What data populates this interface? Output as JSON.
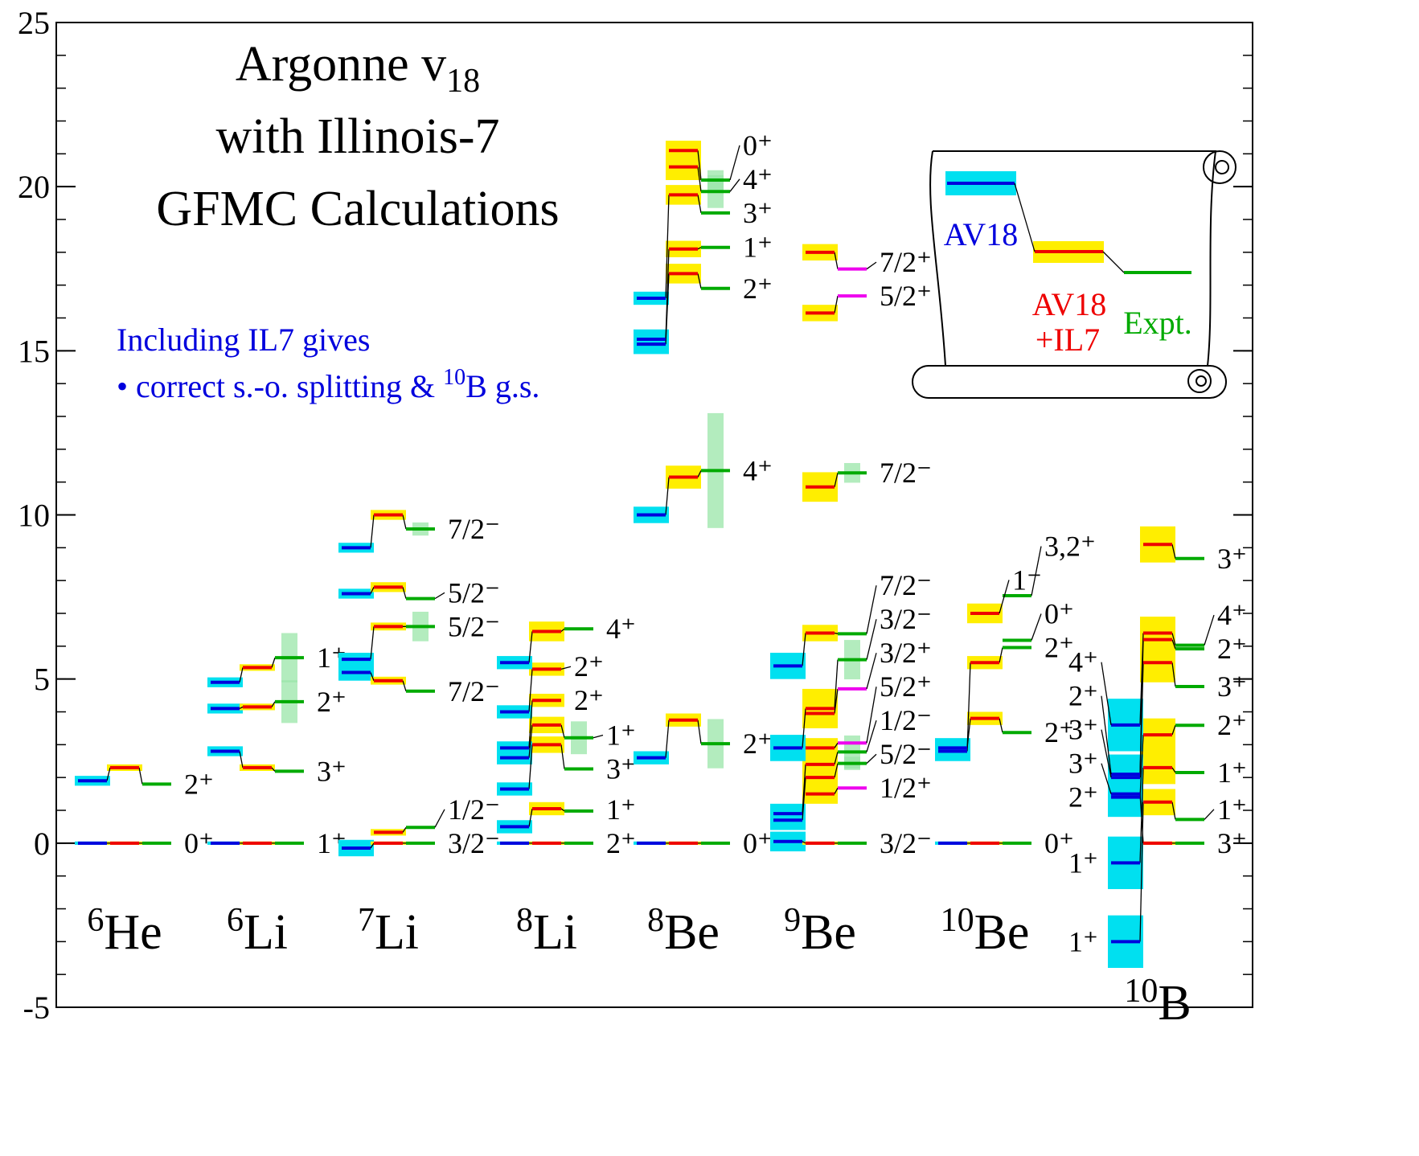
{
  "chart_data": {
    "type": "level-scheme",
    "title": "Argonne v",
    "title_subscript": "18",
    "subtitle_lines": [
      "with Illinois-7",
      "GFMC Calculations"
    ],
    "note_lines": [
      [
        {
          "text": "Including IL7 gives"
        }
      ],
      [
        {
          "text": "• correct s.-o. splitting & "
        },
        {
          "text": "10",
          "sup": true
        },
        {
          "text": "B g.s."
        }
      ]
    ],
    "legend": {
      "av18": "AV18",
      "il7": [
        "AV18",
        "+IL7"
      ],
      "expt": "Expt."
    },
    "colors": {
      "av18": "#0000dd",
      "av18_error": "#00e0f0",
      "il7": "#ee0000",
      "il7_error": "#ffee00",
      "expt": "#00aa00",
      "expt_error": "#99e6a8"
    },
    "ylim": [
      -5,
      25
    ],
    "yticks": [
      -5,
      0,
      5,
      10,
      15,
      20,
      25
    ],
    "yminor": 1,
    "nuclei": [
      {
        "mass": "6",
        "element": "He",
        "states": [
          {
            "label": "0⁺",
            "av18": {
              "value": 0,
              "error": 0.05
            },
            "il7": {
              "value": 0,
              "error": 0.05
            },
            "expt": {
              "value": 0
            }
          },
          {
            "label": "2⁺",
            "av18": {
              "value": 1.9,
              "error": 0.15
            },
            "il7": {
              "value": 2.3,
              "error": 0.1
            },
            "expt": {
              "value": 1.8
            }
          }
        ]
      },
      {
        "mass": "6",
        "element": "Li",
        "states": [
          {
            "label": "1⁺",
            "av18": {
              "value": 0,
              "error": 0.05
            },
            "il7": {
              "value": 0,
              "error": 0.05
            },
            "expt": {
              "value": 0
            }
          },
          {
            "label": "3⁺",
            "av18": {
              "value": 2.8,
              "error": 0.15
            },
            "il7": {
              "value": 2.3,
              "error": 0.1
            },
            "expt": {
              "value": 2.19
            }
          },
          {
            "label": "2⁺",
            "av18": {
              "value": 4.1,
              "error": 0.15
            },
            "il7": {
              "value": 4.15,
              "error": 0.1
            },
            "expt": {
              "value": 4.31,
              "error": 0.65
            }
          },
          {
            "label": "1⁺",
            "av18": {
              "value": 4.9,
              "error": 0.15
            },
            "il7": {
              "value": 5.35,
              "error": 0.1
            },
            "expt": {
              "value": 5.65,
              "error": 0.75
            }
          }
        ]
      },
      {
        "mass": "7",
        "element": "Li",
        "states": [
          {
            "label": "3/2⁻",
            "av18": {
              "value": -0.15,
              "error": 0.25
            },
            "il7": {
              "value": 0,
              "error": 0.05
            },
            "expt": {
              "value": 0
            }
          },
          {
            "label": "1/2⁻",
            "il7": {
              "value": 0.33,
              "error": 0.1
            },
            "expt": {
              "value": 0.48
            }
          },
          {
            "label": "7/2⁻",
            "av18": {
              "value": 5.2,
              "error": 0.25
            },
            "il7": {
              "value": 4.95,
              "error": 0.12
            },
            "expt": {
              "value": 4.63
            }
          },
          {
            "label": "5/2⁻",
            "av18": {
              "value": 5.6,
              "error": 0.2
            },
            "il7": {
              "value": 6.6,
              "error": 0.12
            },
            "expt": {
              "value": 6.6,
              "error": 0.45
            }
          },
          {
            "label": "5/2⁻",
            "av18": {
              "value": 7.6,
              "error": 0.15
            },
            "il7": {
              "value": 7.8,
              "error": 0.15
            },
            "expt": {
              "value": 7.45
            }
          },
          {
            "label": "7/2⁻",
            "av18": {
              "value": 9.0,
              "error": 0.15
            },
            "il7": {
              "value": 10.0,
              "error": 0.15
            },
            "expt": {
              "value": 9.57,
              "error": 0.2
            }
          }
        ]
      },
      {
        "mass": "8",
        "element": "Li",
        "states": [
          {
            "label": "2⁺",
            "av18": {
              "value": 0,
              "error": 0.05
            },
            "il7": {
              "value": 0,
              "error": 0.05
            },
            "expt": {
              "value": 0
            }
          },
          {
            "label": "1⁺",
            "av18": {
              "value": 0.5,
              "error": 0.2
            },
            "il7": {
              "value": 1.05,
              "error": 0.2
            },
            "expt": {
              "value": 0.98
            }
          },
          {
            "label": "3⁺",
            "av18": {
              "value": 1.65,
              "error": 0.2
            },
            "il7": {
              "value": 3.0,
              "error": 0.25
            },
            "expt": {
              "value": 2.26
            }
          },
          {
            "label": "1⁺",
            "av18": {
              "value": 2.6,
              "error": 0.2
            },
            "il7": {
              "value": 3.6,
              "error": 0.25
            },
            "expt": {
              "value": 3.21,
              "error": 0.5
            }
          },
          {
            "label": "2⁺",
            "av18": {
              "value": 2.9,
              "error": 0.2
            },
            "il7": {
              "value": 4.35,
              "error": 0.2
            }
          },
          {
            "label": "2⁺",
            "av18": {
              "value": 4.0,
              "error": 0.2
            },
            "il7": {
              "value": 5.3,
              "error": 0.2
            }
          },
          {
            "label": "4⁺",
            "av18": {
              "value": 5.5,
              "error": 0.2
            },
            "il7": {
              "value": 6.45,
              "error": 0.3
            },
            "expt": {
              "value": 6.53
            }
          }
        ]
      },
      {
        "mass": "8",
        "element": "Be",
        "states": [
          {
            "label": "0⁺",
            "av18": {
              "value": 0,
              "error": 0.05
            },
            "il7": {
              "value": 0,
              "error": 0.05
            },
            "expt": {
              "value": 0
            }
          },
          {
            "label": "2⁺",
            "av18": {
              "value": 2.6,
              "error": 0.2
            },
            "il7": {
              "value": 3.75,
              "error": 0.2
            },
            "expt": {
              "value": 3.03,
              "error": 0.75
            }
          },
          {
            "label": "4⁺",
            "av18": {
              "value": 10.0,
              "error": 0.25
            },
            "il7": {
              "value": 11.15,
              "error": 0.35
            },
            "expt": {
              "value": 11.35,
              "error": 1.75
            }
          },
          {
            "label": "2⁺",
            "av18": {
              "value": 15.2,
              "error": 0.3
            },
            "il7": {
              "value": 17.35,
              "error": 0.3
            },
            "expt": {
              "value": 16.9
            }
          },
          {
            "label": "1⁺",
            "av18": {
              "value": 15.35,
              "error": 0.3
            },
            "il7": {
              "value": 18.1,
              "error": 0.25
            },
            "expt": {
              "value": 18.15
            }
          },
          {
            "label": "3⁺",
            "av18": {
              "value": 16.6,
              "error": 0.2
            },
            "il7": {
              "value": 19.75,
              "error": 0.3
            },
            "expt": {
              "value": 19.2
            }
          },
          {
            "label": "4⁺",
            "il7": {
              "value": 20.6,
              "error": 0.4
            },
            "expt": {
              "value": 19.85,
              "error": 0.5
            }
          },
          {
            "label": "0⁺",
            "il7": {
              "value": 21.1,
              "error": 0.3
            },
            "expt": {
              "value": 20.2,
              "error": 0.3
            }
          }
        ]
      },
      {
        "mass": "9",
        "element": "Be",
        "states": [
          {
            "label": "3/2⁻",
            "av18": {
              "value": 0.05,
              "error": 0.3
            },
            "il7": {
              "value": 0,
              "error": 0.05
            },
            "expt": {
              "value": 0
            }
          },
          {
            "label": "1/2⁺",
            "il7": {
              "value": 1.5,
              "error": 0.3
            },
            "expt": {
              "value": 1.68,
              "color": "#ee00ee"
            }
          },
          {
            "label": "5/2⁻",
            "av18": {
              "value": 0.7,
              "error": 0.3
            },
            "il7": {
              "value": 2.0,
              "error": 0.3
            },
            "expt": {
              "value": 2.43,
              "error": 0.2
            }
          },
          {
            "label": "1/2⁻",
            "av18": {
              "value": 0.9,
              "error": 0.3
            },
            "il7": {
              "value": 2.4,
              "error": 0.3
            },
            "expt": {
              "value": 2.78,
              "error": 0.5
            }
          },
          {
            "label": "5/2⁺",
            "il7": {
              "value": 2.9,
              "error": 0.3
            },
            "expt": {
              "value": 3.05,
              "color": "#ee00ee"
            }
          },
          {
            "label": "3/2⁺",
            "il7": {
              "value": 3.95,
              "error": 0.4
            },
            "expt": {
              "value": 4.7,
              "color": "#ee00ee"
            }
          },
          {
            "label": "3/2⁻",
            "av18": {
              "value": 2.9,
              "error": 0.4
            },
            "il7": {
              "value": 4.1,
              "error": 0.6
            },
            "expt": {
              "value": 5.59,
              "error": 0.6
            }
          },
          {
            "label": "7/2⁻",
            "av18": {
              "value": 5.4,
              "error": 0.4
            },
            "il7": {
              "value": 6.4,
              "error": 0.25
            },
            "expt": {
              "value": 6.38
            }
          },
          {
            "label": "7/2⁻",
            "il7": {
              "value": 10.85,
              "error": 0.45
            },
            "expt": {
              "value": 11.28,
              "error": 0.3
            }
          },
          {
            "label": "5/2⁺",
            "il7": {
              "value": 16.15,
              "error": 0.25
            },
            "expt": {
              "value": 16.67,
              "color": "#ee00ee"
            }
          },
          {
            "label": "7/2⁺",
            "il7": {
              "value": 18.0,
              "error": 0.25
            },
            "expt": {
              "value": 17.49,
              "color": "#ee00ee"
            }
          }
        ]
      },
      {
        "mass": "10",
        "element": "Be",
        "states": [
          {
            "label": "0⁺",
            "av18": {
              "value": 0,
              "error": 0.05
            },
            "il7": {
              "value": 0,
              "error": 0.05
            },
            "expt": {
              "value": 0
            }
          },
          {
            "label": "2⁺",
            "av18": {
              "value": 2.9,
              "error": 0.3
            },
            "il7": {
              "value": 3.8,
              "error": 0.2
            },
            "expt": {
              "value": 3.37
            }
          },
          {
            "label": "2⁺",
            "av18": {
              "value": 2.8,
              "error": 0.3
            },
            "il7": {
              "value": 5.5,
              "error": 0.2
            },
            "expt": {
              "value": 5.96
            }
          },
          {
            "label": "0⁺",
            "expt": {
              "value": 6.18
            }
          },
          {
            "label": "1⁻",
            "il7": {
              "value": 7.0,
              "error": 0.3
            }
          },
          {
            "label": "3,2⁺",
            "expt": {
              "value": 7.54
            }
          }
        ]
      },
      {
        "mass": "10",
        "element": "B",
        "left_labels": true,
        "states": [
          {
            "label": "3⁺",
            "av18": {
              "value": 1.5,
              "error": 0.35
            },
            "il7": {
              "value": 0,
              "error": 0.05
            },
            "expt": {
              "value": 0
            }
          },
          {
            "label": "1⁺",
            "av18": {
              "value": -3.0,
              "error": 0.8
            },
            "il7": {
              "value": 1.25,
              "error": 0.4
            },
            "expt": {
              "value": 0.72
            }
          },
          {
            "label": "1⁺",
            "av18": {
              "value": -0.6,
              "error": 0.8
            },
            "il7": {
              "value": 2.3,
              "error": 0.5
            },
            "expt": {
              "value": 2.15
            }
          },
          {
            "label": "2⁺",
            "av18": {
              "value": 1.4,
              "error": 0.6
            },
            "il7": {
              "value": 3.3,
              "error": 0.5
            },
            "expt": {
              "value": 3.59
            }
          },
          {
            "label": "3⁺",
            "av18": {
              "value": 2.0,
              "error": 0.6
            },
            "il7": {
              "value": 5.5,
              "error": 0.6
            },
            "expt": {
              "value": 4.77
            }
          },
          {
            "label": "2⁺",
            "av18": {
              "value": 2.1,
              "error": 0.6
            },
            "il7": {
              "value": 6.2,
              "error": 0.5
            },
            "expt": {
              "value": 5.92
            }
          },
          {
            "label": "4⁺",
            "av18": {
              "value": 3.6,
              "error": 0.8
            },
            "il7": {
              "value": 6.4,
              "error": 0.5
            },
            "expt": {
              "value": 6.03
            }
          },
          {
            "label": "3⁺",
            "il7": {
              "value": 9.1,
              "error": 0.55
            },
            "expt": {
              "value": 8.67
            }
          }
        ]
      }
    ]
  }
}
